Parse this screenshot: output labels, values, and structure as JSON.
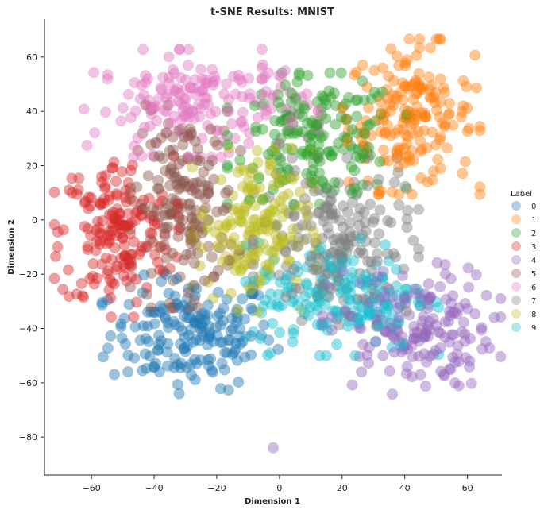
{
  "chart_data": {
    "type": "scatter",
    "title": "t-SNE Results: MNIST",
    "xlabel": "Dimension 1",
    "ylabel": "Dimension 2",
    "xlim": [
      -75,
      71
    ],
    "ylim": [
      -94,
      74
    ],
    "xticks": [
      -60,
      -40,
      -20,
      0,
      20,
      40,
      60
    ],
    "yticks": [
      -80,
      -60,
      -40,
      -20,
      0,
      20,
      40,
      60
    ],
    "grid": false,
    "legend": {
      "title": "Label",
      "placement": "right"
    },
    "point_alpha": 0.45,
    "series": [
      {
        "name": "0",
        "color": "#1f77b4",
        "center": [
          -28,
          -42
        ],
        "spread": [
          13,
          10
        ]
      },
      {
        "name": "1",
        "color": "#ff7f0e",
        "center": [
          42,
          38
        ],
        "spread": [
          10,
          13
        ]
      },
      {
        "name": "2",
        "color": "#2ca02c",
        "center": [
          12,
          30
        ],
        "spread": [
          13,
          11
        ]
      },
      {
        "name": "3",
        "color": "#d62728",
        "center": [
          -52,
          -5
        ],
        "spread": [
          9,
          14
        ]
      },
      {
        "name": "4",
        "color": "#9467bd",
        "center": [
          42,
          -40
        ],
        "spread": [
          13,
          11
        ]
      },
      {
        "name": "5",
        "color": "#8c564b",
        "center": [
          -30,
          5
        ],
        "spread": [
          8,
          17
        ]
      },
      {
        "name": "6",
        "color": "#e377c2",
        "center": [
          -25,
          43
        ],
        "spread": [
          17,
          9
        ]
      },
      {
        "name": "7",
        "color": "#7f7f7f",
        "center": [
          18,
          -8
        ],
        "spread": [
          12,
          14
        ]
      },
      {
        "name": "8",
        "color": "#bcbd22",
        "center": [
          -8,
          -3
        ],
        "spread": [
          9,
          14
        ]
      },
      {
        "name": "9",
        "color": "#17becf",
        "center": [
          20,
          -28
        ],
        "spread": [
          14,
          10
        ]
      }
    ],
    "outliers": [
      {
        "label": "4",
        "x": -2,
        "y": -84
      }
    ]
  }
}
